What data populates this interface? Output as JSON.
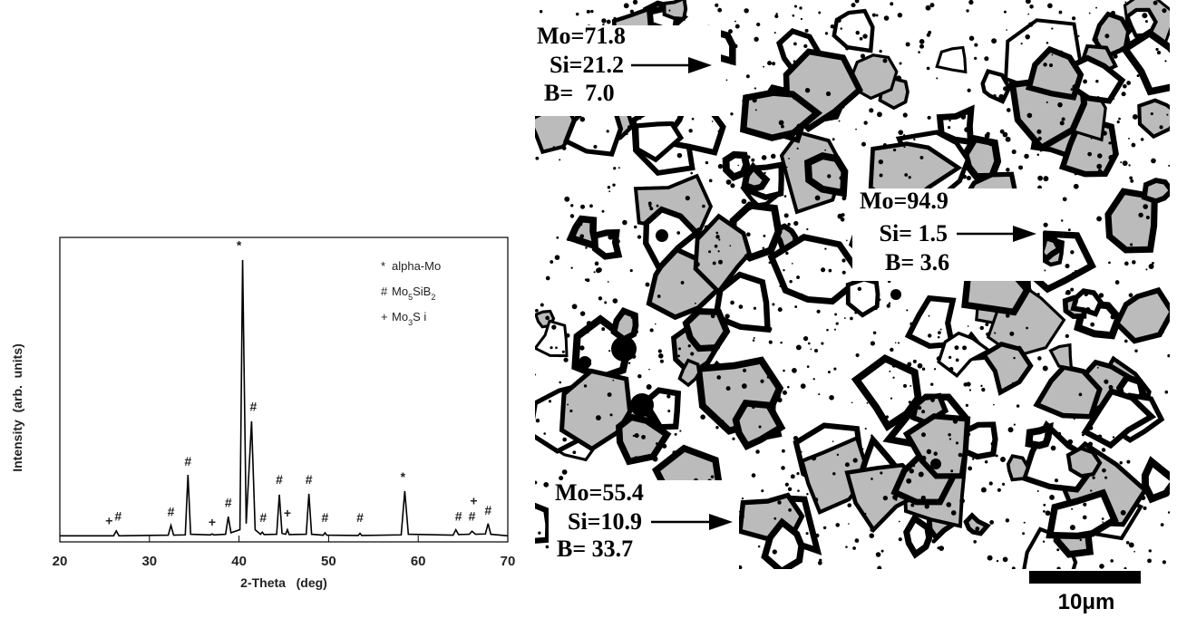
{
  "chart_data": {
    "type": "line",
    "x_label": "2-Theta   (deg)",
    "y_label": "Intensity  (arb.  units)",
    "xlim": [
      20,
      70
    ],
    "xticks": [
      20,
      30,
      40,
      50,
      60,
      70
    ],
    "ylim": [
      0,
      100
    ],
    "color": "#000000",
    "x": [
      20,
      26.0,
      26.3,
      26.6,
      32.1,
      32.4,
      32.7,
      34.0,
      34.3,
      34.6,
      36.8,
      37.0,
      37.2,
      38.5,
      38.8,
      39.1,
      40.1,
      40.4,
      40.8,
      41.4,
      41.8,
      42.4,
      42.6,
      42.8,
      44.2,
      44.5,
      44.8,
      45.2,
      45.4,
      45.6,
      47.5,
      47.8,
      48.1,
      49.4,
      49.6,
      49.8,
      53.3,
      53.5,
      53.7,
      58.1,
      58.5,
      58.9,
      63.9,
      64.2,
      64.5,
      65.7,
      66.0,
      66.4,
      67.5,
      67.8,
      68.1,
      70
    ],
    "values": [
      2,
      2,
      3.6,
      2,
      2.2,
      5.4,
      2.2,
      2.3,
      22,
      2.5,
      2.3,
      2.6,
      2.3,
      2.5,
      8.3,
      3,
      4,
      92.6,
      6,
      39.6,
      4,
      2.5,
      3.2,
      2.4,
      2.5,
      15.5,
      2.8,
      2.5,
      4,
      2.4,
      2.5,
      15.8,
      2.5,
      2.2,
      3,
      2.2,
      2.1,
      2.8,
      2.1,
      2.3,
      16.7,
      2.5,
      2.2,
      4,
      2.4,
      2.5,
      3.5,
      2.5,
      2.6,
      6,
      2.5,
      2
    ],
    "annotations": [
      {
        "text": "+",
        "x": 25.5,
        "y": 5.5
      },
      {
        "text": "#",
        "x": 26.5,
        "y": 7
      },
      {
        "text": "#",
        "x": 32.4,
        "y": 8.5
      },
      {
        "text": "#",
        "x": 34.3,
        "y": 25
      },
      {
        "text": "+",
        "x": 37.0,
        "y": 5
      },
      {
        "text": "#",
        "x": 38.8,
        "y": 11.5
      },
      {
        "text": "*",
        "x": 40.0,
        "y": 96
      },
      {
        "text": "#",
        "x": 41.6,
        "y": 43
      },
      {
        "text": "#",
        "x": 42.7,
        "y": 6.5
      },
      {
        "text": "#",
        "x": 44.5,
        "y": 19
      },
      {
        "text": "+",
        "x": 45.4,
        "y": 8
      },
      {
        "text": "#",
        "x": 47.8,
        "y": 19
      },
      {
        "text": "#",
        "x": 49.6,
        "y": 6.5
      },
      {
        "text": "#",
        "x": 53.5,
        "y": 6.5
      },
      {
        "text": "*",
        "x": 58.3,
        "y": 20
      },
      {
        "text": "#",
        "x": 64.5,
        "y": 7
      },
      {
        "text": "#",
        "x": 66.0,
        "y": 7
      },
      {
        "text": "+",
        "x": 66.2,
        "y": 12
      },
      {
        "text": "#",
        "x": 67.8,
        "y": 9
      }
    ],
    "legend": [
      {
        "symbol": "*",
        "text": [
          "alpha-Mo"
        ]
      },
      {
        "symbol": "#",
        "text": [
          "Mo",
          "5",
          "SiB",
          "2"
        ]
      },
      {
        "symbol": "+",
        "text": [
          "Mo",
          "3",
          "S i"
        ]
      }
    ]
  },
  "micrograph": {
    "regions": [
      {
        "lines": [
          "Mo=71.8",
          "Si=21.2",
          "B=  7.0"
        ]
      },
      {
        "lines": [
          "Mo=94.9",
          "Si= 1.5",
          "B= 3.6"
        ]
      },
      {
        "lines": [
          "Mo=55.4",
          "Si=10.9",
          "B= 33.7"
        ]
      }
    ],
    "scale_bar": "10μm"
  }
}
